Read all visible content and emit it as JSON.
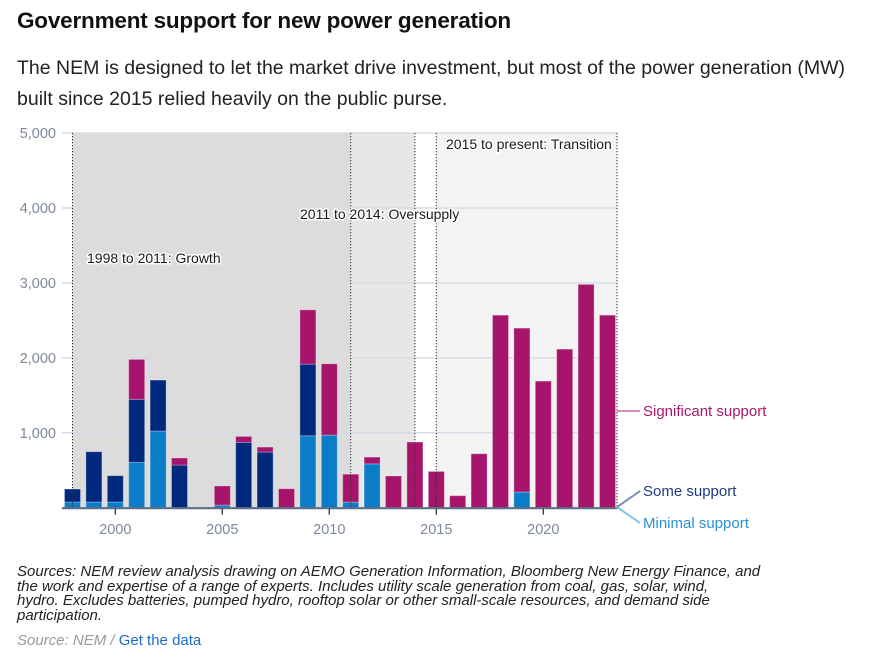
{
  "header": {
    "title": "Government support for new power generation",
    "subtitle": "The NEM is designed to let the market drive investment, but most of the power generation (MW) built since 2015 relied heavily on the public purse."
  },
  "chart_data": {
    "type": "bar",
    "stacked": true,
    "title": "Government support for new power generation",
    "xlabel": "",
    "ylabel": "MW",
    "categories": [
      1998,
      1999,
      2000,
      2001,
      2002,
      2003,
      2004,
      2005,
      2006,
      2007,
      2008,
      2009,
      2010,
      2011,
      2012,
      2013,
      2014,
      2015,
      2016,
      2017,
      2018,
      2019,
      2020,
      2021,
      2022,
      2023
    ],
    "series": [
      {
        "name": "Minimal support",
        "color": "#0a7cc8",
        "label_color": "#2a90d4",
        "connector_color": "#86c3ea",
        "values": [
          76,
          76,
          76,
          605,
          1023,
          0,
          0,
          35,
          0,
          0,
          0,
          960,
          969,
          75,
          585,
          0,
          0,
          0,
          0,
          0,
          0,
          209,
          0,
          0,
          0,
          0
        ]
      },
      {
        "name": "Some support",
        "color": "#00287d",
        "label_color": "#1f3a80",
        "connector_color": "#7c8cbf",
        "values": [
          173,
          671,
          351,
          840,
          680,
          569,
          0,
          0,
          871,
          743,
          0,
          956,
          0,
          0,
          0,
          0,
          0,
          0,
          0,
          0,
          0,
          0,
          0,
          0,
          0,
          0
        ]
      },
      {
        "name": "Significant support",
        "color": "#a6146b",
        "label_color": "#a8196e",
        "connector_color": "#d98cba",
        "values": [
          0,
          0,
          0,
          534,
          0,
          94,
          0,
          255,
          80,
          66,
          253,
          724,
          951,
          372,
          90,
          423,
          876,
          484,
          160,
          720,
          2569,
          2187,
          1689,
          2116,
          2980,
          2569
        ]
      }
    ],
    "ylim": [
      0,
      5000
    ],
    "yticks": [
      1000,
      2000,
      3000,
      4000,
      5000
    ],
    "ytick_labels": [
      "1,000",
      "2,000",
      "3,000",
      "4,000",
      "5,000"
    ],
    "xticks": [
      2000,
      2005,
      2010,
      2015,
      2020
    ],
    "xtick_labels": [
      "2000",
      "2005",
      "2010",
      "2015",
      "2020"
    ],
    "grid": true,
    "legend": "right, labels attached to final bar",
    "annotations": [
      {
        "label": "1998 to 2011: Growth",
        "start": 1998,
        "end": 2011,
        "shade": "#dcdcdc"
      },
      {
        "label": "2011 to 2014: Oversupply",
        "start": 2011,
        "end": 2014,
        "shade": "#e7e7e7"
      },
      {
        "label": "2015 to present: Transition",
        "start": 2015,
        "end": "present",
        "shade": "#f3f3f3"
      }
    ]
  },
  "footer": {
    "sources_lines": [
      "Sources: NEM review analysis drawing on AEMO Generation Information, Bloomberg New Energy Finance, and",
      "the work and expertise of a range of experts. Includes utility scale generation from coal, gas, solar, wind,",
      "hydro. Excludes batteries, pumped hydro, rooftop solar or other small-scale resources, and demand side",
      "participation."
    ],
    "source_prefix": "Source: NEM / ",
    "get_data_link": "Get the data"
  }
}
